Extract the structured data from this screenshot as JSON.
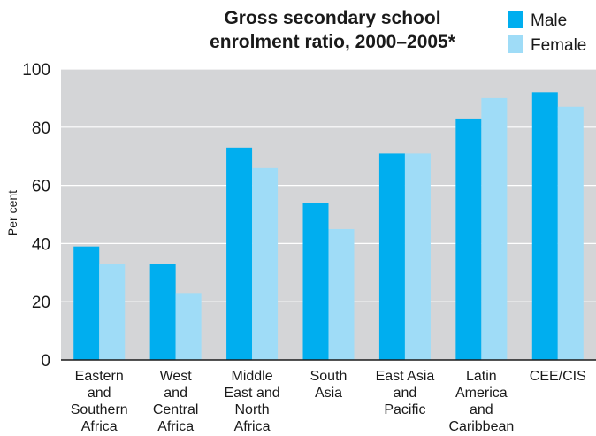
{
  "chart_data": {
    "type": "bar",
    "title": [
      "Gross secondary school",
      "enrolment ratio, 2000–2005*"
    ],
    "ylabel": "Per cent",
    "ylim": [
      0,
      100
    ],
    "yticks": [
      0,
      20,
      40,
      60,
      80,
      100
    ],
    "grid": true,
    "legend_position": "top-right",
    "categories": [
      [
        "Eastern",
        "and",
        "Southern",
        "Africa"
      ],
      [
        "West",
        "and",
        "Central",
        "Africa"
      ],
      [
        "Middle",
        "East and",
        "North",
        "Africa"
      ],
      [
        "South",
        "Asia"
      ],
      [
        "East Asia",
        "and",
        "Pacific"
      ],
      [
        "Latin",
        "America",
        "and",
        "Caribbean"
      ],
      [
        "CEE/CIS"
      ]
    ],
    "series": [
      {
        "name": "Male",
        "color": "#00aeef",
        "values": [
          39,
          33,
          73,
          54,
          71,
          83,
          92
        ]
      },
      {
        "name": "Female",
        "color": "#9fdcf7",
        "values": [
          33,
          23,
          66,
          45,
          71,
          90,
          87
        ]
      }
    ],
    "colors": {
      "plot_background": "#d4d5d7",
      "gridline": "#ffffff",
      "axis": "#1a1a1a"
    }
  }
}
